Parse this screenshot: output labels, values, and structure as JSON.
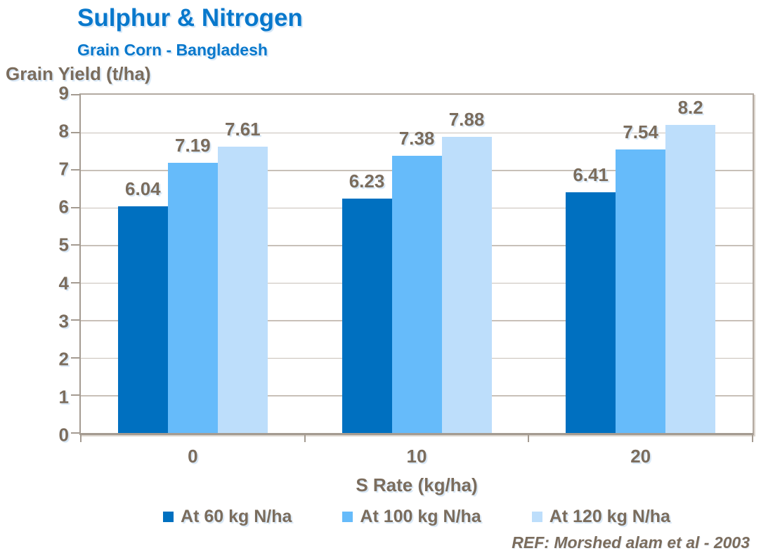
{
  "header": {
    "title": "Sulphur & Nitrogen",
    "subtitle": "Grain Corn - Bangladesh"
  },
  "footer": {
    "ref": "REF:  Morshed alam et al - 2003"
  },
  "colors": {
    "title_blue": "#0878CC",
    "text_brown": "#7B6C5C",
    "axis_line": "#A49B91",
    "gridline": "#C8C0B8",
    "series_dark_blue": "#0070C0",
    "series_medium_blue": "#66BBFA",
    "series_light_blue": "#BDDEFB"
  },
  "chart_data": {
    "type": "bar",
    "title": "Sulphur & Nitrogen",
    "subtitle": "Grain Corn - Bangladesh",
    "xlabel": "S Rate (kg/ha)",
    "ylabel": "Grain Yield (t/ha)",
    "categories": [
      "0",
      "10",
      "20"
    ],
    "series": [
      {
        "name": "At 60 kg N/ha",
        "color": "#0070C0",
        "values": [
          6.04,
          6.23,
          6.41
        ]
      },
      {
        "name": "At 100 kg N/ha",
        "color": "#66BBFA",
        "values": [
          7.19,
          7.38,
          7.54
        ]
      },
      {
        "name": "At 120 kg N/ha",
        "color": "#BDDEFB",
        "values": [
          7.61,
          7.88,
          8.2
        ]
      }
    ],
    "ylim": [
      0,
      9
    ],
    "yticks": [
      0,
      1,
      2,
      3,
      4,
      5,
      6,
      7,
      8,
      9
    ],
    "grid": true,
    "legend_position": "bottom",
    "bar_value_labels": true
  }
}
